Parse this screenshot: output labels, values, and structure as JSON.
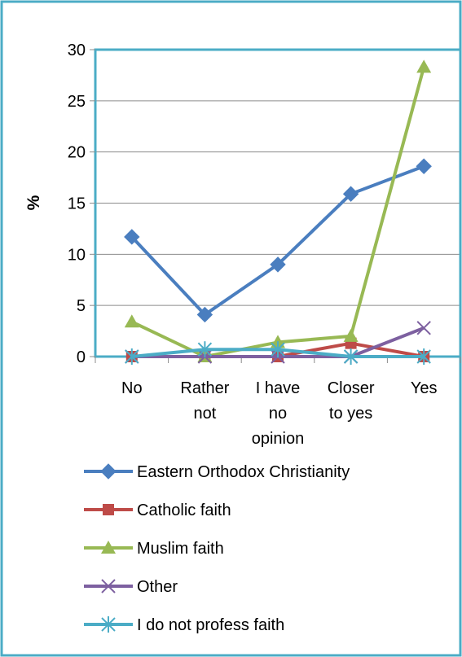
{
  "chart_data": {
    "type": "line",
    "title": "",
    "xlabel": "",
    "ylabel": "%",
    "categories": [
      [
        "No"
      ],
      [
        "Rather",
        "not"
      ],
      [
        "I have",
        "no",
        "opinion"
      ],
      [
        "Closer",
        "to yes"
      ],
      [
        "Yes"
      ]
    ],
    "ylim": [
      0,
      30
    ],
    "yticks": [
      0,
      5,
      10,
      15,
      20,
      25,
      30
    ],
    "grid": true,
    "legend_position": "bottom",
    "series": [
      {
        "name": "Eastern Orthodox Christianity",
        "color": "#4a7ebf",
        "marker": "diamond",
        "values": [
          11.7,
          4.1,
          9.0,
          15.9,
          18.6
        ]
      },
      {
        "name": "Catholic faith",
        "color": "#be4b48",
        "marker": "square",
        "values": [
          0,
          0,
          0,
          1.3,
          0
        ]
      },
      {
        "name": "Muslim faith",
        "color": "#98b954",
        "marker": "triangle",
        "values": [
          3.4,
          0,
          1.4,
          2.0,
          28.3
        ]
      },
      {
        "name": "Other",
        "color": "#7d60a0",
        "marker": "x",
        "values": [
          0,
          0,
          0,
          0,
          2.8
        ]
      },
      {
        "name": "I do not profess faith",
        "color": "#4bacc6",
        "marker": "asterisk",
        "values": [
          0,
          0.7,
          0.7,
          0,
          0
        ]
      }
    ]
  },
  "colors": {
    "frame": "#4bacc6",
    "grid": "#8c8c8c"
  }
}
